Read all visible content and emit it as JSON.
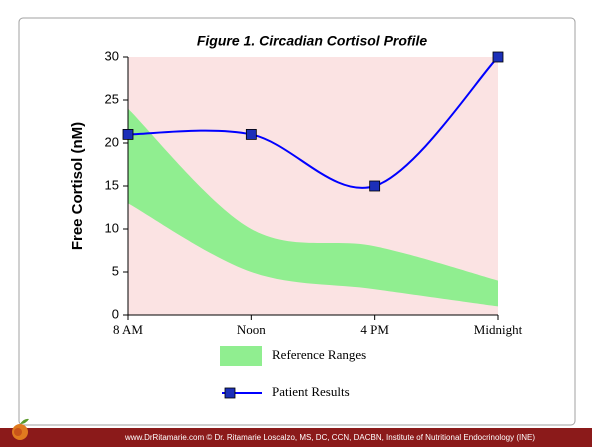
{
  "chart_data": {
    "type": "line",
    "title": "Figure 1.  Circadian Cortisol Profile",
    "y_label": "Free Cortisol (nM)",
    "categories": [
      "8 AM",
      "Noon",
      "4 PM",
      "Midnight"
    ],
    "ylim": [
      0,
      30
    ],
    "yticks": [
      0,
      5,
      10,
      15,
      20,
      25,
      30
    ],
    "background": "#fbe3e3",
    "band": {
      "name": "Reference Ranges",
      "color": "#90ee90",
      "upper": [
        24,
        10,
        8,
        4
      ],
      "lower": [
        13,
        5,
        3,
        1
      ]
    },
    "series": [
      {
        "name": "Patient Results",
        "color": "#0000ff",
        "marker_color": "#1c2fb8",
        "values": [
          21,
          21,
          15,
          30
        ]
      }
    ]
  },
  "footer": {
    "text": "www.DrRitamarie.com     © Dr. Ritamarie Loscalzo, MS, DC, CCN, DACBN, Institute of Nutritional Endocrinology (INE)"
  }
}
